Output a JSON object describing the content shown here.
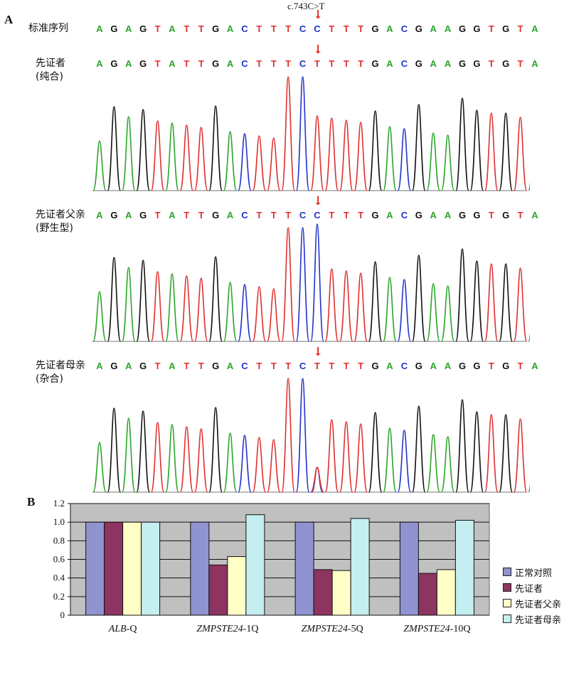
{
  "panel_a": {
    "label": "A",
    "mutation_label": "c.743C>T",
    "mutation_index": 15,
    "base_colors": {
      "A": "#2aa52a",
      "G": "#111111",
      "T": "#e03030",
      "C": "#2233cc"
    },
    "rows": [
      {
        "label": [
          "标准序列"
        ],
        "sequence": "AGAGTATTGACTTTCCTTTGACGAAGGTGTA",
        "has_trace": false
      },
      {
        "label": [
          "先证者",
          "(纯合)"
        ],
        "sequence": "AGAGTATTGACTTTCTTTTGACGAAGGTGTA",
        "has_trace": true
      },
      {
        "label": [
          "先证者父亲",
          "(野生型)"
        ],
        "sequence": "AGAGTATTGACTTTCCTTTGACGAAGGTGTA",
        "has_trace": true
      },
      {
        "label": [
          "先证者母亲",
          "(杂合)"
        ],
        "sequence": "AGAGTATTGACTTTCTTTTGACGAAGGTGTA",
        "has_trace": true
      }
    ]
  },
  "panel_b": {
    "label": "B"
  },
  "chart_data": {
    "type": "bar",
    "categories": [
      "ALB-Q",
      "ZMPSTE24-1Q",
      "ZMPSTE24-5Q",
      "ZMPSTE24-10Q"
    ],
    "category_parts": [
      {
        "gene": "ALB",
        "suffix": "-Q"
      },
      {
        "gene": "ZMPSTE24",
        "suffix": "-1Q"
      },
      {
        "gene": "ZMPSTE24",
        "suffix": "-5Q"
      },
      {
        "gene": "ZMPSTE24",
        "suffix": "-10Q"
      }
    ],
    "series": [
      {
        "name": "正常对照",
        "color": "#8f93cf",
        "values": [
          1.0,
          1.0,
          1.0,
          1.0
        ]
      },
      {
        "name": "先证者",
        "color": "#8e3461",
        "values": [
          1.0,
          0.54,
          0.49,
          0.45
        ]
      },
      {
        "name": "先证者父亲",
        "color": "#ffffc6",
        "values": [
          1.0,
          0.63,
          0.48,
          0.49
        ]
      },
      {
        "name": "先证者母亲",
        "color": "#c5eef0",
        "values": [
          1.0,
          1.08,
          1.04,
          1.02
        ]
      }
    ],
    "ylim": [
      0,
      1.2
    ],
    "yticks": [
      "0",
      "0.2",
      "0.4",
      "0.6",
      "0.8",
      "1.0",
      "1.2"
    ],
    "grid": true,
    "plot_background": "#c0c0c0",
    "legend_position": "right"
  }
}
